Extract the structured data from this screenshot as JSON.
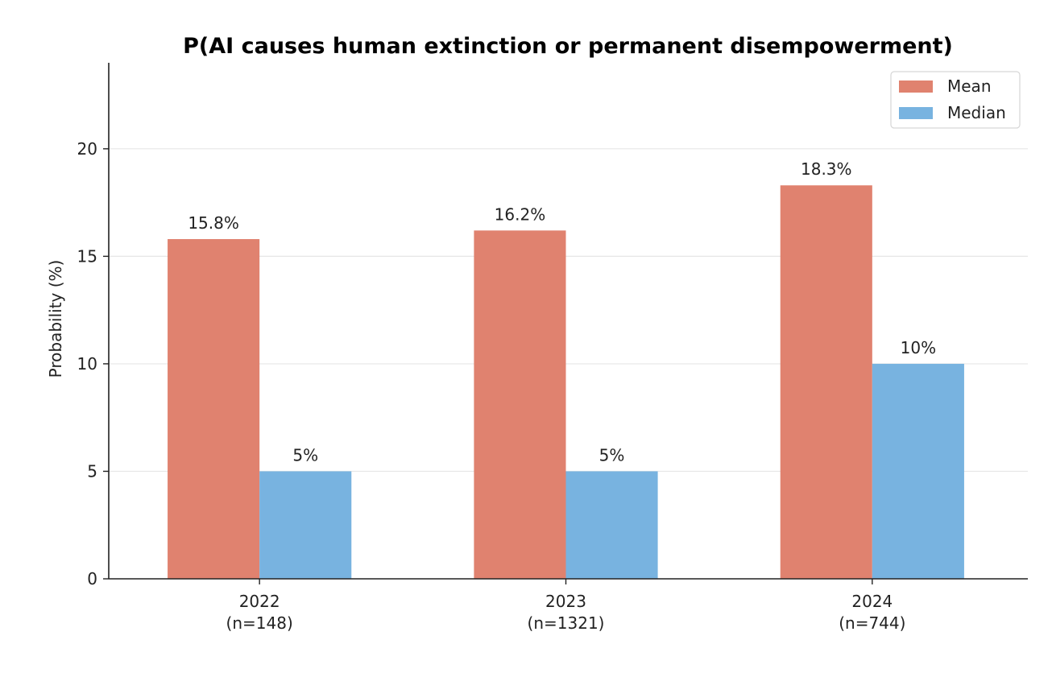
{
  "chart_data": {
    "type": "bar",
    "title": "P(AI causes human extinction or permanent disempowerment)",
    "xlabel": "",
    "ylabel": "Probability (%)",
    "categories": [
      [
        "2022",
        "(n=148)"
      ],
      [
        "2023",
        "(n=1321)"
      ],
      [
        "2024",
        "(n=744)"
      ]
    ],
    "series": [
      {
        "name": "Mean",
        "color": "#e0826f",
        "values": [
          15.8,
          16.2,
          18.3
        ],
        "labels": [
          "15.8%",
          "16.2%",
          "18.3%"
        ]
      },
      {
        "name": "Median",
        "color": "#78b3e0",
        "values": [
          5,
          5,
          10
        ],
        "labels": [
          "5%",
          "5%",
          "10%"
        ]
      }
    ],
    "ylim": [
      0,
      24
    ],
    "yticks": [
      0,
      5,
      10,
      15,
      20
    ],
    "grid": "y",
    "legend_position": "top-right"
  }
}
